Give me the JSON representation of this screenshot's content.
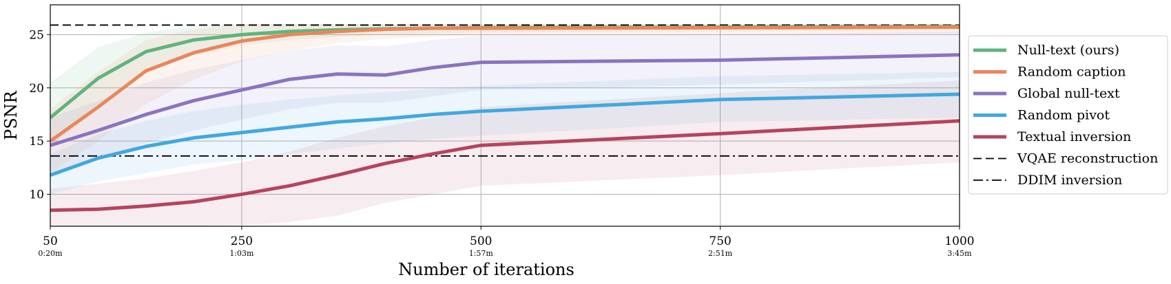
{
  "chart_data": {
    "type": "line",
    "title": "",
    "xlabel": "Number of iterations",
    "ylabel": "PSNR",
    "xlim": [
      50,
      1000
    ],
    "ylim": [
      7,
      27.8
    ],
    "grid": true,
    "legend_position": "right-outside",
    "x_ticks": [
      {
        "value": 50,
        "label": "50",
        "sub": "0:20m"
      },
      {
        "value": 250,
        "label": "250",
        "sub": "1:03m"
      },
      {
        "value": 500,
        "label": "500",
        "sub": "1:57m"
      },
      {
        "value": 750,
        "label": "750",
        "sub": "2:51m"
      },
      {
        "value": 1000,
        "label": "1000",
        "sub": "3:45m"
      }
    ],
    "y_ticks": [
      10,
      15,
      20,
      25
    ],
    "series": [
      {
        "name": "Null-text (ours)",
        "color": "#5fb47d",
        "x": [
          50,
          100,
          150,
          200,
          250,
          300,
          350,
          400,
          450,
          500,
          750,
          1000
        ],
        "y": [
          17.2,
          20.9,
          23.4,
          24.5,
          25.0,
          25.3,
          25.45,
          25.55,
          25.6,
          25.65,
          25.7,
          25.75
        ],
        "band_low": [
          14.5,
          18.0,
          21.5,
          23.0,
          24.0,
          24.5,
          24.8,
          25.0,
          25.1,
          25.2,
          25.3,
          25.4
        ],
        "band_high": [
          20.5,
          23.8,
          25.2,
          25.8,
          26.0,
          26.0,
          26.0,
          26.0,
          26.0,
          26.0,
          26.0,
          26.0
        ]
      },
      {
        "name": "Random caption",
        "color": "#e8875b",
        "x": [
          50,
          100,
          150,
          200,
          250,
          300,
          350,
          400,
          450,
          500,
          750,
          1000
        ],
        "y": [
          15.0,
          18.2,
          21.6,
          23.3,
          24.4,
          25.0,
          25.3,
          25.5,
          25.6,
          25.6,
          25.65,
          25.7
        ],
        "band_low": [
          12.0,
          15.0,
          18.5,
          20.8,
          22.5,
          23.5,
          24.2,
          24.6,
          24.8,
          24.9,
          25.0,
          25.1
        ],
        "band_high": [
          18.0,
          21.5,
          24.5,
          25.5,
          26.0,
          26.0,
          26.0,
          26.0,
          26.0,
          26.0,
          26.0,
          26.0
        ]
      },
      {
        "name": "Global null-text",
        "color": "#8a74c0",
        "x": [
          50,
          100,
          150,
          200,
          250,
          300,
          350,
          400,
          450,
          500,
          750,
          1000
        ],
        "y": [
          14.6,
          16.0,
          17.5,
          18.8,
          19.8,
          20.8,
          21.3,
          21.2,
          21.9,
          22.4,
          22.6,
          23.1
        ],
        "band_low": [
          12.0,
          13.2,
          14.8,
          16.0,
          17.0,
          18.0,
          18.6,
          18.6,
          19.2,
          19.8,
          20.3,
          21.0
        ],
        "band_high": [
          17.2,
          18.8,
          20.5,
          21.7,
          22.6,
          23.5,
          24.0,
          23.9,
          24.5,
          24.9,
          25.0,
          25.3
        ]
      },
      {
        "name": "Random pivot",
        "color": "#41a8e0",
        "x": [
          50,
          100,
          150,
          200,
          250,
          300,
          350,
          400,
          450,
          500,
          750,
          1000
        ],
        "y": [
          11.8,
          13.4,
          14.5,
          15.3,
          15.8,
          16.3,
          16.8,
          17.1,
          17.5,
          17.8,
          18.9,
          19.4
        ],
        "band_low": [
          10.0,
          11.2,
          12.0,
          12.8,
          13.2,
          13.8,
          14.3,
          14.8,
          15.2,
          15.5,
          16.8,
          17.2
        ],
        "band_high": [
          13.8,
          15.6,
          16.9,
          17.8,
          18.4,
          18.9,
          19.3,
          19.6,
          19.9,
          20.2,
          21.1,
          21.5
        ]
      },
      {
        "name": "Textual inversion",
        "color": "#b5445e",
        "x": [
          50,
          100,
          150,
          200,
          250,
          300,
          350,
          400,
          450,
          500,
          750,
          1000
        ],
        "y": [
          8.5,
          8.6,
          8.9,
          9.3,
          10.0,
          10.8,
          11.8,
          12.9,
          13.8,
          14.6,
          15.7,
          16.9
        ],
        "band_low": [
          7.0,
          7.0,
          7.0,
          7.0,
          7.1,
          7.4,
          8.0,
          9.2,
          10.0,
          10.8,
          11.8,
          13.0
        ],
        "band_high": [
          10.5,
          11.0,
          11.5,
          12.2,
          13.0,
          14.0,
          15.3,
          16.4,
          17.2,
          18.2,
          19.5,
          20.7
        ]
      }
    ],
    "reference_lines": [
      {
        "name": "VQAE reconstruction",
        "y": 25.9,
        "style": "dashed",
        "color": "#000000"
      },
      {
        "name": "DDIM inversion",
        "y": 13.6,
        "style": "dashdot",
        "color": "#000000"
      }
    ]
  }
}
